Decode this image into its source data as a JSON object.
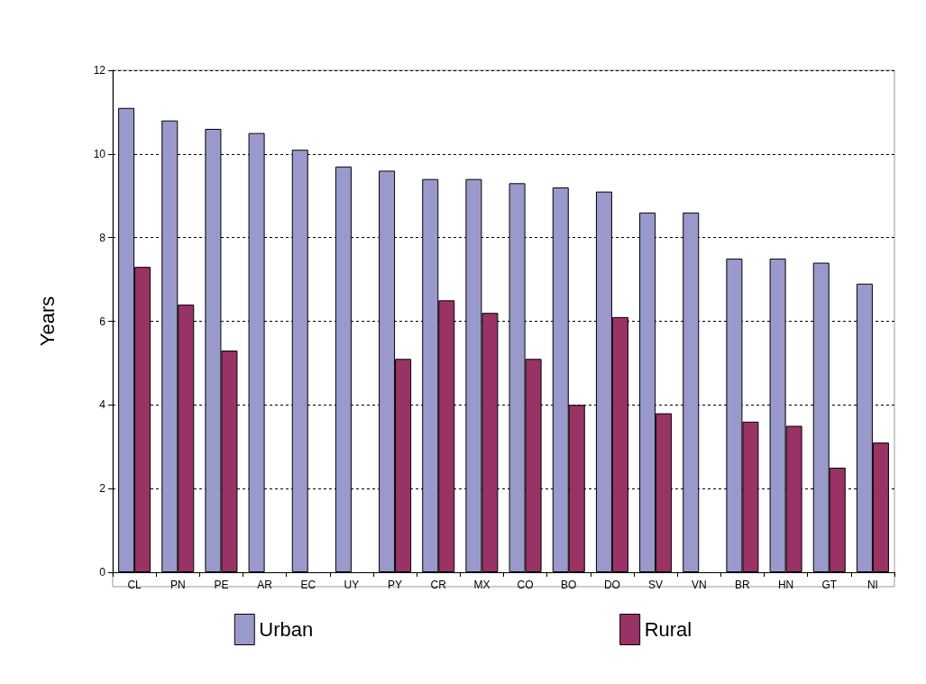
{
  "chart_data": {
    "type": "bar",
    "ylabel": "Years",
    "categories": [
      "CL",
      "PN",
      "PE",
      "AR",
      "EC",
      "UY",
      "PY",
      "CR",
      "MX",
      "CO",
      "BO",
      "DO",
      "SV",
      "VN",
      "BR",
      "HN",
      "GT",
      "NI"
    ],
    "series": [
      {
        "name": "Urban",
        "color": "#9999cc",
        "values": [
          11.1,
          10.8,
          10.6,
          10.5,
          10.1,
          9.7,
          9.6,
          9.4,
          9.4,
          9.3,
          9.2,
          9.1,
          8.6,
          8.6,
          7.5,
          7.5,
          7.4,
          6.9
        ]
      },
      {
        "name": "Rural",
        "color": "#993366",
        "values": [
          7.3,
          6.4,
          5.3,
          null,
          null,
          null,
          5.1,
          6.5,
          6.2,
          5.1,
          4.0,
          6.1,
          3.8,
          null,
          3.6,
          3.5,
          2.5,
          3.1
        ]
      }
    ],
    "ylim": [
      0,
      12
    ],
    "yticks": [
      0,
      2,
      4,
      6,
      8,
      10,
      12
    ],
    "grid": "y",
    "legend": "bottom"
  }
}
